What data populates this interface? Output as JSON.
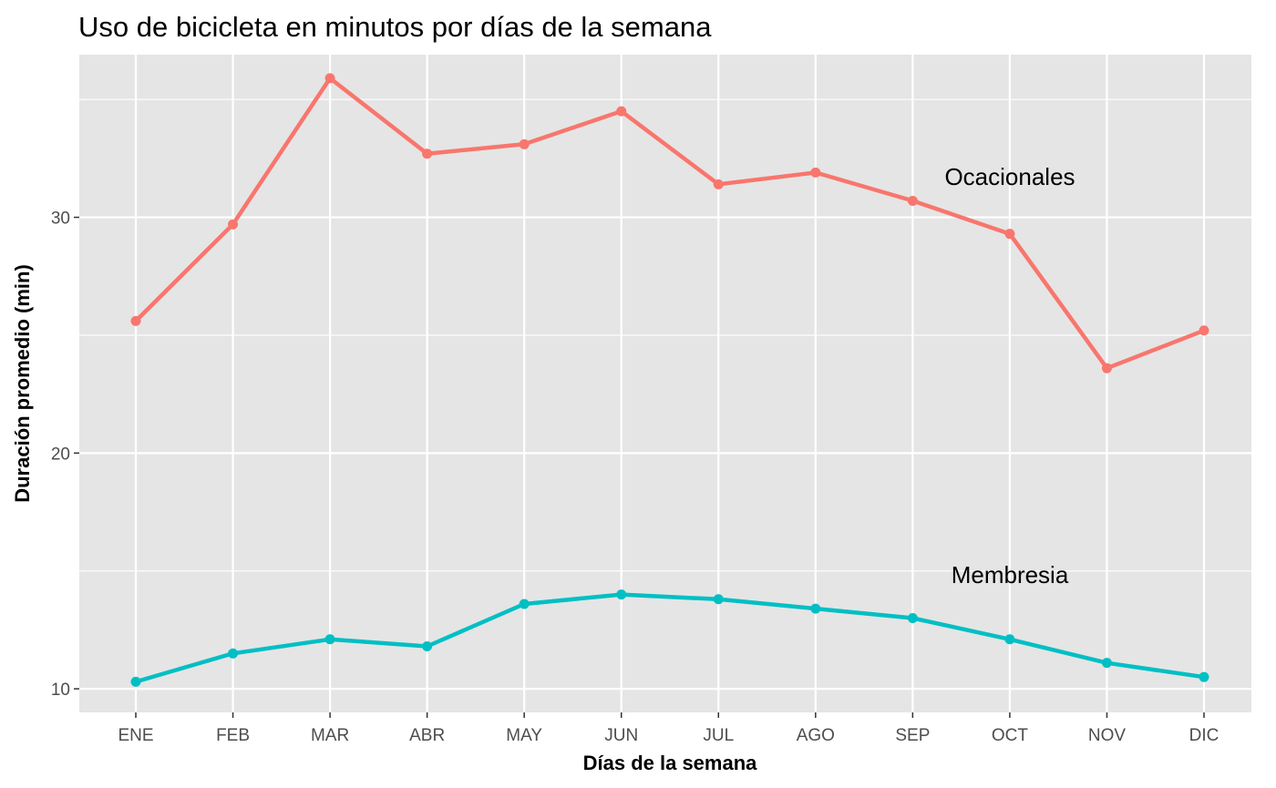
{
  "chart_data": {
    "type": "line",
    "title": "Uso de bicicleta en minutos por días de la semana",
    "xlabel": "Días de la semana",
    "ylabel": "Duración promedio (min)",
    "categories": [
      "ENE",
      "FEB",
      "MAR",
      "ABR",
      "MAY",
      "JUN",
      "JUL",
      "AGO",
      "SEP",
      "OCT",
      "NOV",
      "DIC"
    ],
    "yticks": [
      10,
      20,
      30
    ],
    "ylim": [
      9.0,
      36.9
    ],
    "grid": true,
    "background": "#E5E5E5",
    "series": [
      {
        "name": "Ocacionales",
        "color": "#F8766D",
        "values": [
          25.6,
          29.7,
          35.9,
          32.7,
          33.1,
          34.5,
          31.4,
          31.9,
          30.7,
          29.3,
          23.6,
          25.2
        ]
      },
      {
        "name": "Membresia",
        "color": "#00BFC4",
        "values": [
          10.3,
          11.5,
          12.1,
          11.8,
          13.6,
          14.0,
          13.8,
          13.4,
          13.0,
          12.1,
          11.1,
          10.5
        ]
      }
    ]
  }
}
